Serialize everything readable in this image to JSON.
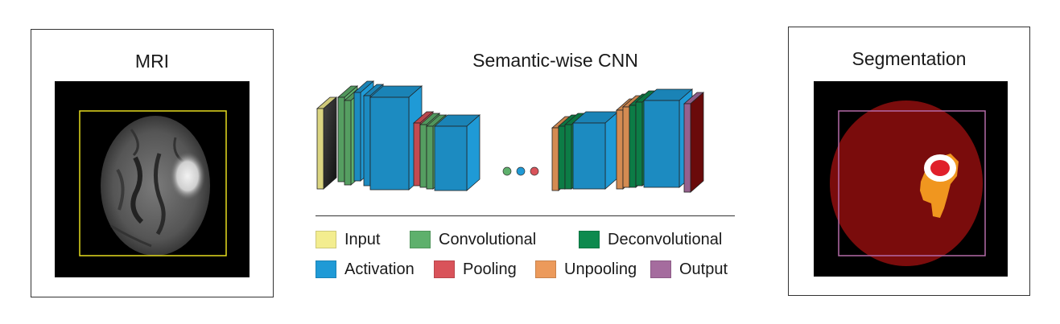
{
  "mri": {
    "title": "MRI"
  },
  "segmentation": {
    "title": "Segmentation"
  },
  "cnn": {
    "title": "Semantic-wise CNN"
  },
  "legend": [
    {
      "key": "input",
      "label": "Input",
      "color": "#f3ed8f"
    },
    {
      "key": "convolutional",
      "label": "Convolutional",
      "color": "#5eb06c"
    },
    {
      "key": "deconvolutional",
      "label": "Deconvolutional",
      "color": "#0d8a4e"
    },
    {
      "key": "activation",
      "label": "Activation",
      "color": "#1f9ad6"
    },
    {
      "key": "pooling",
      "label": "Pooling",
      "color": "#d9535a"
    },
    {
      "key": "unpooling",
      "label": "Unpooling",
      "color": "#ec9a5b"
    },
    {
      "key": "output",
      "label": "Output",
      "color": "#a56c9e"
    }
  ],
  "colors": {
    "bbox_mri": "#e5dc1f",
    "bbox_seg": "#b46aa8",
    "brain_seg": "#7a0c0c",
    "edema": "#f0961f",
    "tumor_core": "#e01f2a",
    "enhancing": "#ffffff"
  }
}
